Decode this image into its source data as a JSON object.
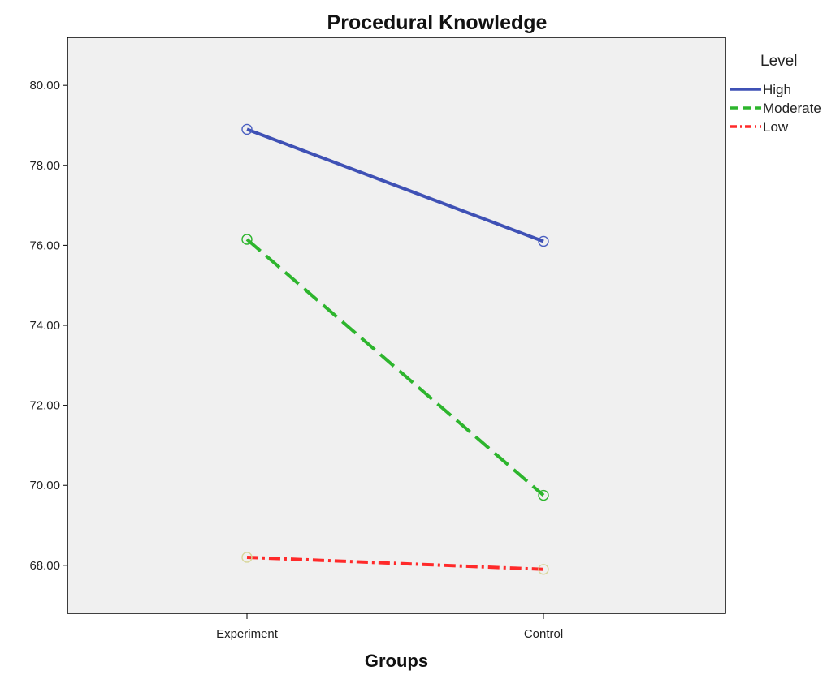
{
  "chart_data": {
    "type": "line",
    "title": "Procedural Knowledge",
    "xlabel": "Groups",
    "ylabel": "",
    "categories": [
      "Experiment",
      "Control"
    ],
    "ylim": [
      66.8,
      81.2
    ],
    "yticks": [
      "68.00",
      "70.00",
      "72.00",
      "74.00",
      "76.00",
      "78.00",
      "80.00"
    ],
    "grid": false,
    "legend": {
      "title": "Level",
      "position": "right"
    },
    "series": [
      {
        "name": "High",
        "values": [
          78.9,
          76.1
        ],
        "color": "#3f51b5",
        "dash": "solid",
        "marker_color": "#4a5fc1"
      },
      {
        "name": "Moderate",
        "values": [
          76.15,
          69.75
        ],
        "color": "#2db52d",
        "dash": "dashed",
        "marker_color": "#2db52d"
      },
      {
        "name": "Low",
        "values": [
          68.2,
          67.9
        ],
        "color": "#ff2a2a",
        "dash": "dashdot",
        "marker_color": "#d8d69a"
      }
    ]
  }
}
